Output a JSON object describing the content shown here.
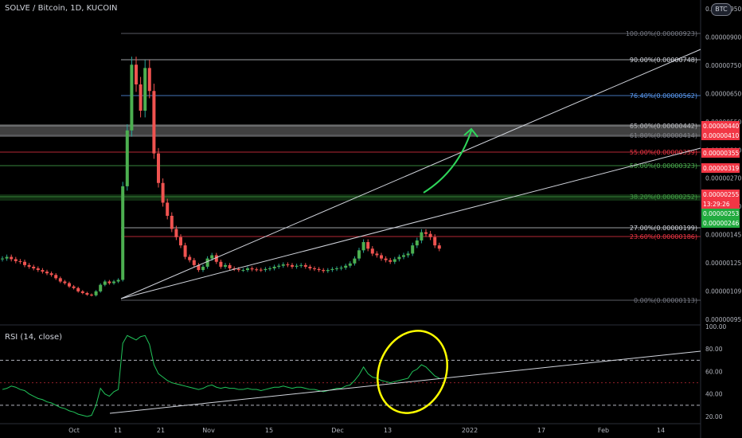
{
  "header": {
    "title": "SOLVE / Bitcoin, 1D, KUCOIN",
    "currency_badge": "BTC"
  },
  "rsi_panel": {
    "title": "RSI (14, close)"
  },
  "colors": {
    "background": "#000000",
    "up": "#26a69a",
    "down": "#ef5350",
    "wick": "#c7c7c7",
    "rsi": "#21c45a",
    "annotation": "#ffff00",
    "arrow": "#2fd55a",
    "grid_label": "#b2b5be"
  },
  "chart_data": [
    {
      "type": "candlestick",
      "title": "SOLVE / Bitcoin, 1D, KUCOIN",
      "ylim": [
        9.5e-07,
        1.008e-05
      ],
      "y_ticks": [
        "0.00000950",
        "0.00000900",
        "0.00000750",
        "0.00000650",
        "0.00000550",
        "0.00000390",
        "0.00000270",
        "0.00000170",
        "0.00000145",
        "0.00000125",
        "0.00000109",
        "0.00000095"
      ],
      "x_ticks": [
        "Oct",
        "11",
        "21",
        "Nov",
        "15",
        "Dec",
        "13",
        "2022",
        "17",
        "Feb",
        "14"
      ],
      "candles_closes_approx": [
        2.3,
        2.35,
        2.28,
        2.22,
        2.2,
        2.1,
        2.05,
        2.0,
        1.95,
        1.9,
        1.85,
        1.8,
        1.7,
        1.6,
        1.55,
        1.45,
        1.4,
        1.3,
        1.25,
        1.2,
        1.18,
        1.3,
        1.5,
        1.6,
        1.55,
        1.6,
        1.65,
        4.5,
        6.2,
        8.2,
        7.6,
        6.8,
        8.1,
        7.4,
        5.5,
        4.6,
        4.0,
        3.6,
        3.2,
        2.95,
        2.7,
        2.35,
        2.25,
        2.1,
        1.95,
        2.05,
        2.3,
        2.4,
        2.2,
        2.05,
        2.1,
        2.0,
        1.98,
        1.95,
        1.95,
        2.0,
        1.97,
        1.96,
        1.95,
        1.98,
        2.0,
        2.05,
        2.08,
        2.12,
        2.1,
        2.05,
        2.08,
        2.1,
        2.05,
        2.0,
        1.98,
        1.95,
        1.92,
        1.95,
        1.98,
        2.0,
        2.02,
        2.08,
        2.15,
        2.3,
        2.55,
        2.8,
        2.6,
        2.45,
        2.4,
        2.3,
        2.25,
        2.2,
        2.28,
        2.35,
        2.4,
        2.45,
        2.7,
        2.85,
        3.1,
        3.05,
        2.95,
        2.7,
        2.6
      ],
      "fibonacci_levels": [
        {
          "label": "100.00%(0.00000923)",
          "value": 9.23e-06
        },
        {
          "label": "90.00%(0.00000748)",
          "value": 7.48e-06
        },
        {
          "label": "76.40%(0.00000562)",
          "value": 5.62e-06
        },
        {
          "label": "65.00%(0.00000442)",
          "value": 4.42e-06
        },
        {
          "label": "61.80%(0.00000414)",
          "value": 4.14e-06
        },
        {
          "label": "55.00%(0.00000359)",
          "value": 3.59e-06
        },
        {
          "label": "50.00%(0.00000323)",
          "value": 3.23e-06
        },
        {
          "label": "38.20%(0.00000252)",
          "value": 2.52e-06
        },
        {
          "label": "27.00%(0.00000199)",
          "value": 1.99e-06
        },
        {
          "label": "23.60%(0.00000186)",
          "value": 1.86e-06
        },
        {
          "label": "0.00%(0.00000113)",
          "value": 1.13e-06
        }
      ],
      "price_tags": [
        {
          "text": "0.00000440",
          "color": "#f23645"
        },
        {
          "text": "0.00000410",
          "color": "#f23645"
        },
        {
          "text": "0.00000355",
          "color": "#f23645"
        },
        {
          "text": "0.00000319",
          "color": "#f23645"
        },
        {
          "text": "0.00000255",
          "color": "#f23645"
        },
        {
          "text": "13:29:26",
          "color": "#f23645"
        },
        {
          "text": "0.00000253",
          "color": "#22ab3f"
        },
        {
          "text": "0.00000246",
          "color": "#22ab3f"
        }
      ]
    },
    {
      "type": "line",
      "title": "RSI (14, close)",
      "ylim": [
        15,
        100
      ],
      "y_ticks": [
        "100.00",
        "80.00",
        "60.00",
        "40.00",
        "20.00"
      ],
      "values_approx": [
        44,
        45,
        47,
        46,
        44,
        43,
        40,
        38,
        36,
        35,
        33,
        32,
        30,
        28,
        27,
        25,
        24,
        22,
        21,
        20,
        21,
        30,
        45,
        40,
        38,
        42,
        44,
        85,
        92,
        90,
        88,
        91,
        92,
        84,
        66,
        58,
        55,
        52,
        50,
        49,
        48,
        47,
        46,
        45,
        44,
        45,
        47,
        48,
        46,
        45,
        46,
        45,
        45,
        44,
        44,
        45,
        44,
        44,
        43,
        44,
        45,
        46,
        46,
        47,
        46,
        45,
        46,
        46,
        45,
        44,
        44,
        43,
        42,
        43,
        44,
        45,
        45,
        47,
        48,
        52,
        57,
        64,
        58,
        55,
        54,
        52,
        51,
        50,
        51,
        52,
        53,
        54,
        60,
        62,
        66,
        64,
        60,
        56,
        54
      ]
    }
  ]
}
